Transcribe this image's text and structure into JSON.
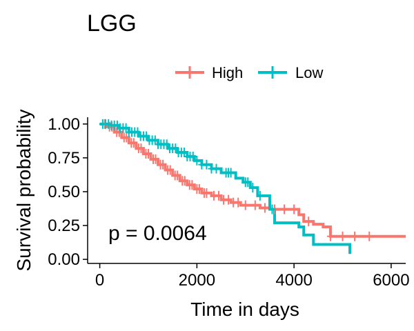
{
  "chart_data": {
    "type": "line",
    "subtype": "kaplan-meier-step",
    "title": "LGG",
    "xlabel": "Time in days",
    "ylabel": "Survival probability",
    "xlim": [
      -250,
      6300
    ],
    "ylim": [
      -0.03,
      1.05
    ],
    "xticks": [
      0,
      2000,
      4000,
      6000
    ],
    "yticks": [
      0.0,
      0.25,
      0.5,
      0.75,
      1.0
    ],
    "ytick_labels": [
      "0.00",
      "0.25",
      "0.50",
      "0.75",
      "1.00"
    ],
    "grid": false,
    "legend_position": "top",
    "annotation": "p = 0.0064",
    "series": [
      {
        "name": "High",
        "color": "#F8766D",
        "x": [
          0,
          150,
          300,
          450,
          600,
          750,
          900,
          1050,
          1200,
          1350,
          1500,
          1650,
          1800,
          1950,
          2100,
          2300,
          2500,
          2700,
          2900,
          3100,
          3300,
          3500,
          3700,
          3900,
          4100,
          4200,
          4400,
          4600,
          4750,
          6300
        ],
        "y": [
          1.0,
          0.98,
          0.94,
          0.9,
          0.86,
          0.82,
          0.78,
          0.74,
          0.7,
          0.66,
          0.62,
          0.58,
          0.55,
          0.52,
          0.49,
          0.47,
          0.44,
          0.42,
          0.4,
          0.4,
          0.38,
          0.37,
          0.37,
          0.37,
          0.33,
          0.28,
          0.26,
          0.24,
          0.17,
          0.17
        ],
        "censor_x": [
          100,
          200,
          250,
          350,
          400,
          500,
          550,
          650,
          700,
          800,
          850,
          950,
          1000,
          1100,
          1150,
          1250,
          1300,
          1400,
          1450,
          1550,
          1600,
          1700,
          1750,
          1850,
          1900,
          2000,
          2050,
          2150,
          2200,
          2350,
          2450,
          2550,
          2650,
          2750,
          2850,
          3000,
          3200,
          3400,
          3600,
          3800,
          4000,
          4300,
          4750,
          5000,
          5250,
          5550
        ]
      },
      {
        "name": "Low",
        "color": "#00BFC4",
        "x": [
          0,
          200,
          400,
          600,
          800,
          1000,
          1200,
          1400,
          1600,
          1800,
          1950,
          2100,
          2300,
          2500,
          2700,
          2800,
          2950,
          3100,
          3250,
          3500,
          3600,
          4000,
          4100,
          4200,
          4400,
          4700,
          5150
        ],
        "y": [
          1.0,
          0.99,
          0.97,
          0.94,
          0.91,
          0.88,
          0.85,
          0.82,
          0.79,
          0.76,
          0.73,
          0.7,
          0.67,
          0.64,
          0.64,
          0.6,
          0.57,
          0.53,
          0.47,
          0.37,
          0.27,
          0.27,
          0.24,
          0.18,
          0.11,
          0.11,
          0.04
        ],
        "censor_x": [
          60,
          120,
          180,
          240,
          300,
          360,
          420,
          480,
          540,
          600,
          660,
          720,
          780,
          840,
          900,
          960,
          1020,
          1080,
          1140,
          1200,
          1260,
          1320,
          1380,
          1440,
          1500,
          1560,
          1620,
          1680,
          1740,
          1800,
          1860,
          1920,
          2000,
          2100,
          2200,
          2300,
          2400,
          2600,
          2650,
          2700,
          3000,
          3050,
          3150,
          3300,
          3550
        ]
      }
    ]
  }
}
